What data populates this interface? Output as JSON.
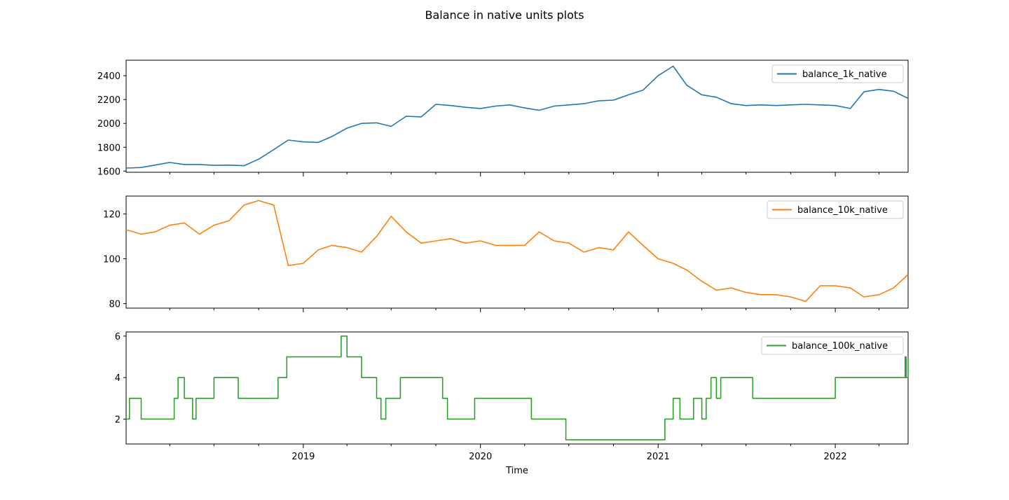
{
  "chart_data": {
    "type": "line",
    "title": "Balance in native units plots",
    "xlabel": "Time",
    "x_tick_labels": [
      "2019",
      "2020",
      "2021",
      "2022"
    ],
    "x_range": [
      "2018-01-01",
      "2022-05-31"
    ],
    "grid": false,
    "panels": [
      {
        "series_name": "balance_1k_native",
        "color": "#1f77b4",
        "legend": "top-right",
        "ylim": [
          1590,
          2530
        ],
        "y_ticks": [
          1600,
          1800,
          2000,
          2200,
          2400
        ],
        "points": [
          [
            "2018-01-01",
            1625
          ],
          [
            "2018-02-01",
            1630
          ],
          [
            "2018-03-01",
            1650
          ],
          [
            "2018-04-01",
            1672
          ],
          [
            "2018-05-01",
            1655
          ],
          [
            "2018-06-01",
            1655
          ],
          [
            "2018-07-01",
            1648
          ],
          [
            "2018-08-01",
            1650
          ],
          [
            "2018-09-01",
            1645
          ],
          [
            "2018-10-01",
            1700
          ],
          [
            "2018-11-01",
            1780
          ],
          [
            "2018-12-01",
            1860
          ],
          [
            "2019-01-01",
            1845
          ],
          [
            "2019-02-01",
            1840
          ],
          [
            "2019-03-01",
            1890
          ],
          [
            "2019-04-01",
            1960
          ],
          [
            "2019-05-01",
            2000
          ],
          [
            "2019-06-01",
            2005
          ],
          [
            "2019-07-01",
            1975
          ],
          [
            "2019-08-01",
            2060
          ],
          [
            "2019-09-01",
            2055
          ],
          [
            "2019-10-01",
            2160
          ],
          [
            "2019-11-01",
            2150
          ],
          [
            "2019-12-01",
            2135
          ],
          [
            "2020-01-01",
            2125
          ],
          [
            "2020-02-01",
            2145
          ],
          [
            "2020-03-01",
            2155
          ],
          [
            "2020-04-01",
            2130
          ],
          [
            "2020-05-01",
            2110
          ],
          [
            "2020-06-01",
            2145
          ],
          [
            "2020-07-01",
            2155
          ],
          [
            "2020-08-01",
            2165
          ],
          [
            "2020-09-01",
            2190
          ],
          [
            "2020-10-01",
            2195
          ],
          [
            "2020-11-01",
            2240
          ],
          [
            "2020-12-01",
            2280
          ],
          [
            "2021-01-01",
            2400
          ],
          [
            "2021-02-01",
            2480
          ],
          [
            "2021-03-01",
            2320
          ],
          [
            "2021-04-01",
            2240
          ],
          [
            "2021-05-01",
            2220
          ],
          [
            "2021-06-01",
            2165
          ],
          [
            "2021-07-01",
            2150
          ],
          [
            "2021-08-01",
            2155
          ],
          [
            "2021-09-01",
            2150
          ],
          [
            "2021-10-01",
            2155
          ],
          [
            "2021-11-01",
            2160
          ],
          [
            "2021-12-01",
            2155
          ],
          [
            "2022-01-01",
            2150
          ],
          [
            "2022-02-01",
            2125
          ],
          [
            "2022-03-01",
            2265
          ],
          [
            "2022-04-01",
            2285
          ],
          [
            "2022-05-01",
            2270
          ],
          [
            "2022-05-31",
            2210
          ]
        ]
      },
      {
        "series_name": "balance_10k_native",
        "color": "#ff7f0e",
        "legend": "top-right",
        "ylim": [
          78,
          128
        ],
        "y_ticks": [
          80,
          100,
          120
        ],
        "points": [
          [
            "2018-01-01",
            113
          ],
          [
            "2018-02-01",
            111
          ],
          [
            "2018-03-01",
            112
          ],
          [
            "2018-04-01",
            115
          ],
          [
            "2018-05-01",
            116
          ],
          [
            "2018-06-01",
            111
          ],
          [
            "2018-07-01",
            115
          ],
          [
            "2018-08-01",
            117
          ],
          [
            "2018-09-01",
            124
          ],
          [
            "2018-10-01",
            126
          ],
          [
            "2018-11-01",
            124
          ],
          [
            "2018-12-01",
            97
          ],
          [
            "2019-01-01",
            98
          ],
          [
            "2019-02-01",
            104
          ],
          [
            "2019-03-01",
            106
          ],
          [
            "2019-04-01",
            105
          ],
          [
            "2019-05-01",
            103
          ],
          [
            "2019-06-01",
            110
          ],
          [
            "2019-07-01",
            119
          ],
          [
            "2019-08-01",
            112
          ],
          [
            "2019-09-01",
            107
          ],
          [
            "2019-10-01",
            108
          ],
          [
            "2019-11-01",
            109
          ],
          [
            "2019-12-01",
            107
          ],
          [
            "2020-01-01",
            108
          ],
          [
            "2020-02-01",
            106
          ],
          [
            "2020-03-01",
            106
          ],
          [
            "2020-04-01",
            106
          ],
          [
            "2020-05-01",
            112
          ],
          [
            "2020-06-01",
            108
          ],
          [
            "2020-07-01",
            107
          ],
          [
            "2020-08-01",
            103
          ],
          [
            "2020-09-01",
            105
          ],
          [
            "2020-10-01",
            104
          ],
          [
            "2020-11-01",
            112
          ],
          [
            "2020-12-01",
            106
          ],
          [
            "2021-01-01",
            100
          ],
          [
            "2021-02-01",
            98
          ],
          [
            "2021-03-01",
            95
          ],
          [
            "2021-04-01",
            90
          ],
          [
            "2021-05-01",
            86
          ],
          [
            "2021-06-01",
            87
          ],
          [
            "2021-07-01",
            85
          ],
          [
            "2021-08-01",
            84
          ],
          [
            "2021-09-01",
            84
          ],
          [
            "2021-10-01",
            83
          ],
          [
            "2021-11-01",
            81
          ],
          [
            "2021-12-01",
            88
          ],
          [
            "2022-01-01",
            88
          ],
          [
            "2022-02-01",
            87
          ],
          [
            "2022-03-01",
            83
          ],
          [
            "2022-04-01",
            84
          ],
          [
            "2022-05-01",
            87
          ],
          [
            "2022-05-31",
            93
          ]
        ]
      },
      {
        "series_name": "balance_100k_native",
        "color": "#2ca02c",
        "legend": "top-right",
        "ylim": [
          0.8,
          6.2
        ],
        "y_ticks": [
          2,
          4,
          6
        ],
        "points": [
          [
            "2018-01-01",
            2
          ],
          [
            "2018-01-08",
            3
          ],
          [
            "2018-02-01",
            2
          ],
          [
            "2018-04-10",
            3
          ],
          [
            "2018-04-18",
            4
          ],
          [
            "2018-05-01",
            3
          ],
          [
            "2018-05-18",
            2
          ],
          [
            "2018-05-25",
            3
          ],
          [
            "2018-07-01",
            4
          ],
          [
            "2018-08-20",
            3
          ],
          [
            "2018-11-10",
            4
          ],
          [
            "2018-11-28",
            5
          ],
          [
            "2019-03-20",
            6
          ],
          [
            "2019-04-01",
            5
          ],
          [
            "2019-05-01",
            4
          ],
          [
            "2019-06-01",
            3
          ],
          [
            "2019-06-10",
            2
          ],
          [
            "2019-06-20",
            3
          ],
          [
            "2019-07-20",
            4
          ],
          [
            "2019-10-15",
            3
          ],
          [
            "2019-10-25",
            2
          ],
          [
            "2019-12-20",
            3
          ],
          [
            "2020-04-15",
            2
          ],
          [
            "2020-06-25",
            1
          ],
          [
            "2021-01-15",
            2
          ],
          [
            "2021-02-01",
            3
          ],
          [
            "2021-02-15",
            2
          ],
          [
            "2021-03-15",
            3
          ],
          [
            "2021-04-01",
            2
          ],
          [
            "2021-04-10",
            3
          ],
          [
            "2021-04-20",
            4
          ],
          [
            "2021-05-01",
            3
          ],
          [
            "2021-05-10",
            4
          ],
          [
            "2021-07-15",
            3
          ],
          [
            "2022-01-01",
            4
          ],
          [
            "2022-05-25",
            5
          ],
          [
            "2022-05-27",
            4
          ],
          [
            "2022-05-31",
            5
          ]
        ]
      }
    ]
  }
}
